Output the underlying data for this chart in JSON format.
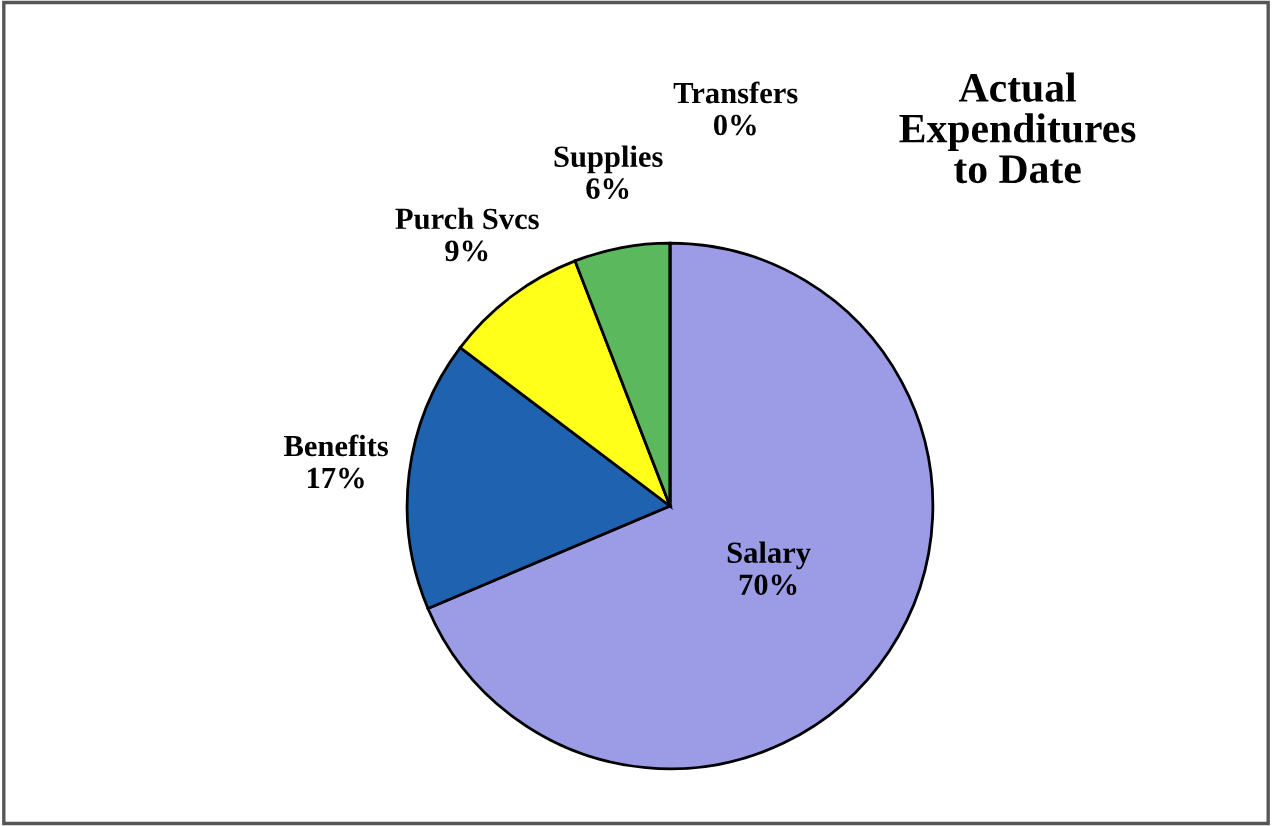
{
  "chart_data": {
    "type": "pie",
    "title": "Actual\nExpenditures\nto Date",
    "categories": [
      "Salary",
      "Benefits",
      "Purch Svcs",
      "Supplies",
      "Transfers"
    ],
    "values": [
      70,
      17,
      9,
      6,
      0
    ],
    "value_labels": [
      "70%",
      "17%",
      "9%",
      "6%",
      "0%"
    ],
    "colors": [
      "#9b9be6",
      "#1f63b0",
      "#ffff1a",
      "#5cb85c",
      "#c0504d"
    ]
  }
}
